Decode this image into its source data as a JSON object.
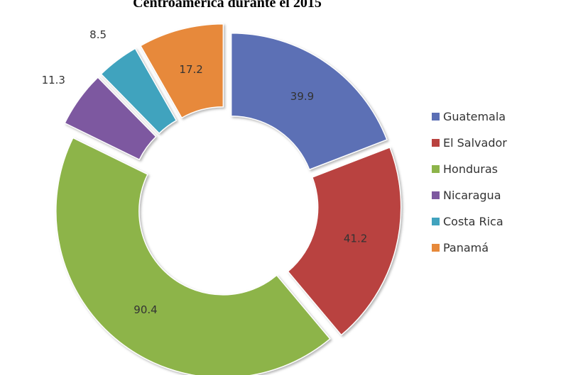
{
  "chart_data": {
    "type": "donut",
    "title": "Centroamérica durante el 2015",
    "categories": [
      "Guatemala",
      "El Salvador",
      "Honduras",
      "Nicaragua",
      "Costa Rica",
      "Panamá"
    ],
    "values": [
      39.9,
      41.2,
      90.4,
      11.3,
      8.5,
      17.2
    ],
    "colors": [
      "#5b6fb5",
      "#b9423f",
      "#8db44a",
      "#7d58a0",
      "#41a3be",
      "#e7893a"
    ],
    "legend": "right"
  }
}
